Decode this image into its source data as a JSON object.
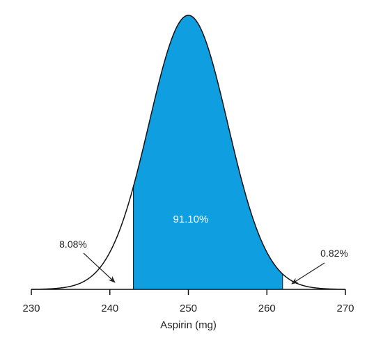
{
  "chart_data": {
    "type": "area",
    "xlabel": "Aspirin (mg)",
    "xlim": [
      230,
      270
    ],
    "xticks": [
      230,
      240,
      250,
      260,
      270
    ],
    "tick_labels": [
      "230",
      "240",
      "250",
      "260",
      "270"
    ],
    "distribution": {
      "mean": 250,
      "sd": 5
    },
    "shaded_region": {
      "from": 243,
      "to": 262,
      "color": "#0f9fe0",
      "label": "91.10%"
    },
    "tail_annotations": [
      {
        "label": "8.08%",
        "side": "left"
      },
      {
        "label": "0.82%",
        "side": "right"
      }
    ],
    "grid": false,
    "legend": "none"
  }
}
